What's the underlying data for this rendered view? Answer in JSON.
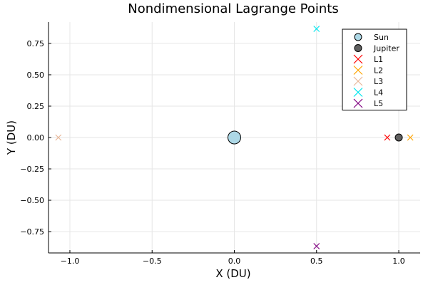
{
  "chart_data": {
    "type": "scatter",
    "title": "Nondimensional Lagrange Points",
    "xlabel": "X (DU)",
    "ylabel": "Y (DU)",
    "xlim": [
      -1.13,
      1.13
    ],
    "ylim": [
      -0.92,
      0.92
    ],
    "xticks": [
      -1.0,
      -0.5,
      0.0,
      0.5,
      1.0
    ],
    "xtick_labels": [
      "−1.0",
      "−0.5",
      "0.0",
      "0.5",
      "1.0"
    ],
    "yticks": [
      -0.75,
      -0.5,
      -0.25,
      0.0,
      0.25,
      0.5,
      0.75
    ],
    "ytick_labels": [
      "−0.75",
      "−0.50",
      "−0.25",
      "0.00",
      "0.25",
      "0.50",
      "0.75"
    ],
    "grid": true,
    "legend_position": "top-right",
    "series": [
      {
        "name": "Sun",
        "marker": "circle",
        "size": "large",
        "color": "#add8e6",
        "points": [
          [
            0.0,
            0.0
          ]
        ]
      },
      {
        "name": "Jupiter",
        "marker": "circle",
        "size": "small",
        "color": "#606060",
        "points": [
          [
            1.0,
            0.0
          ]
        ]
      },
      {
        "name": "L1",
        "marker": "x",
        "color": "#ff0000",
        "points": [
          [
            0.93,
            0.0
          ]
        ]
      },
      {
        "name": "L2",
        "marker": "x",
        "color": "#ffa500",
        "points": [
          [
            1.07,
            0.0
          ]
        ]
      },
      {
        "name": "L3",
        "marker": "x",
        "color": "#e8b89a",
        "points": [
          [
            -1.07,
            0.0
          ]
        ]
      },
      {
        "name": "L4",
        "marker": "x",
        "color": "#00e5ee",
        "points": [
          [
            0.5,
            0.866
          ]
        ]
      },
      {
        "name": "L5",
        "marker": "x",
        "color": "#800080",
        "points": [
          [
            0.5,
            -0.866
          ]
        ]
      }
    ]
  }
}
